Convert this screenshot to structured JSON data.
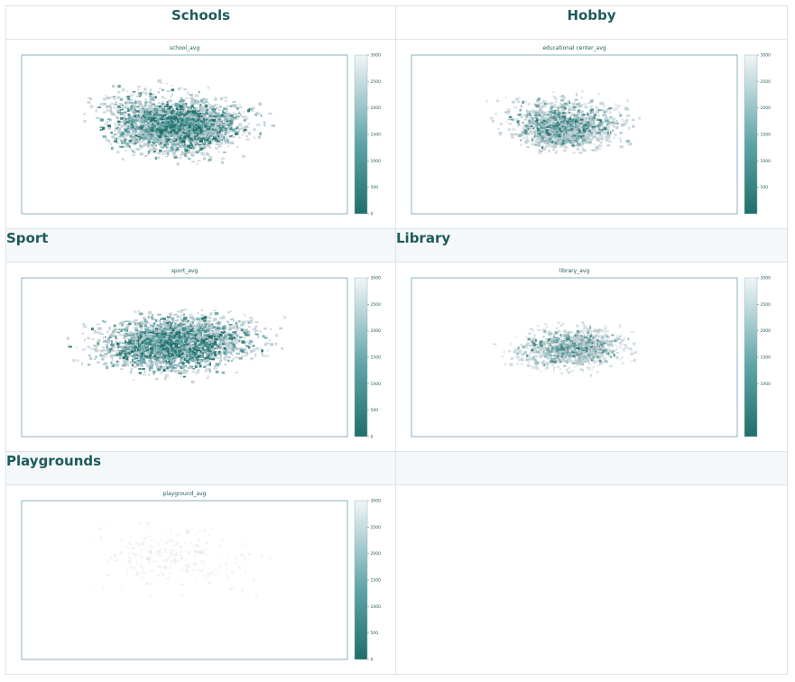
{
  "headers": {
    "schools": "Schools",
    "hobby": "Hobby",
    "sport": "Sport",
    "library": "Library",
    "playgrounds": "Playgrounds"
  },
  "colors": {
    "teal_dark": "#1f6f6a",
    "teal_mid": "#5fa5a8",
    "light": "#f2f5f7",
    "header_text": "#1f5a5a"
  },
  "chart_data": [
    {
      "type": "heatmap",
      "title": "school_avg",
      "colorbar": {
        "min": 0,
        "max": 3000,
        "ticks": [
          "0",
          "500",
          "1000",
          "1500",
          "2000",
          "2500",
          "3000"
        ]
      },
      "coverage": "dense-wide"
    },
    {
      "type": "heatmap",
      "title": "educational center_avg",
      "colorbar": {
        "min": 0,
        "max": 3000,
        "ticks": [
          "500",
          "1000",
          "1500",
          "2000",
          "2500",
          "3000"
        ]
      },
      "coverage": "medium"
    },
    {
      "type": "heatmap",
      "title": "sport_avg",
      "colorbar": {
        "min": 0,
        "max": 3000,
        "ticks": [
          "0",
          "500",
          "1000",
          "1500",
          "2000",
          "2500",
          "3000"
        ]
      },
      "coverage": "dense-wide"
    },
    {
      "type": "heatmap",
      "title": "library_avg",
      "colorbar": {
        "min": 0,
        "max": 3000,
        "ticks": [
          "1000",
          "1500",
          "2000",
          "2500",
          "3000"
        ]
      },
      "coverage": "sparse"
    },
    {
      "type": "heatmap",
      "title": "playground_avg",
      "colorbar": {
        "min": 0,
        "max": 3000,
        "ticks": [
          "0",
          "500",
          "1000",
          "1500",
          "2000",
          "2500",
          "3000"
        ]
      },
      "coverage": "very-sparse"
    }
  ]
}
